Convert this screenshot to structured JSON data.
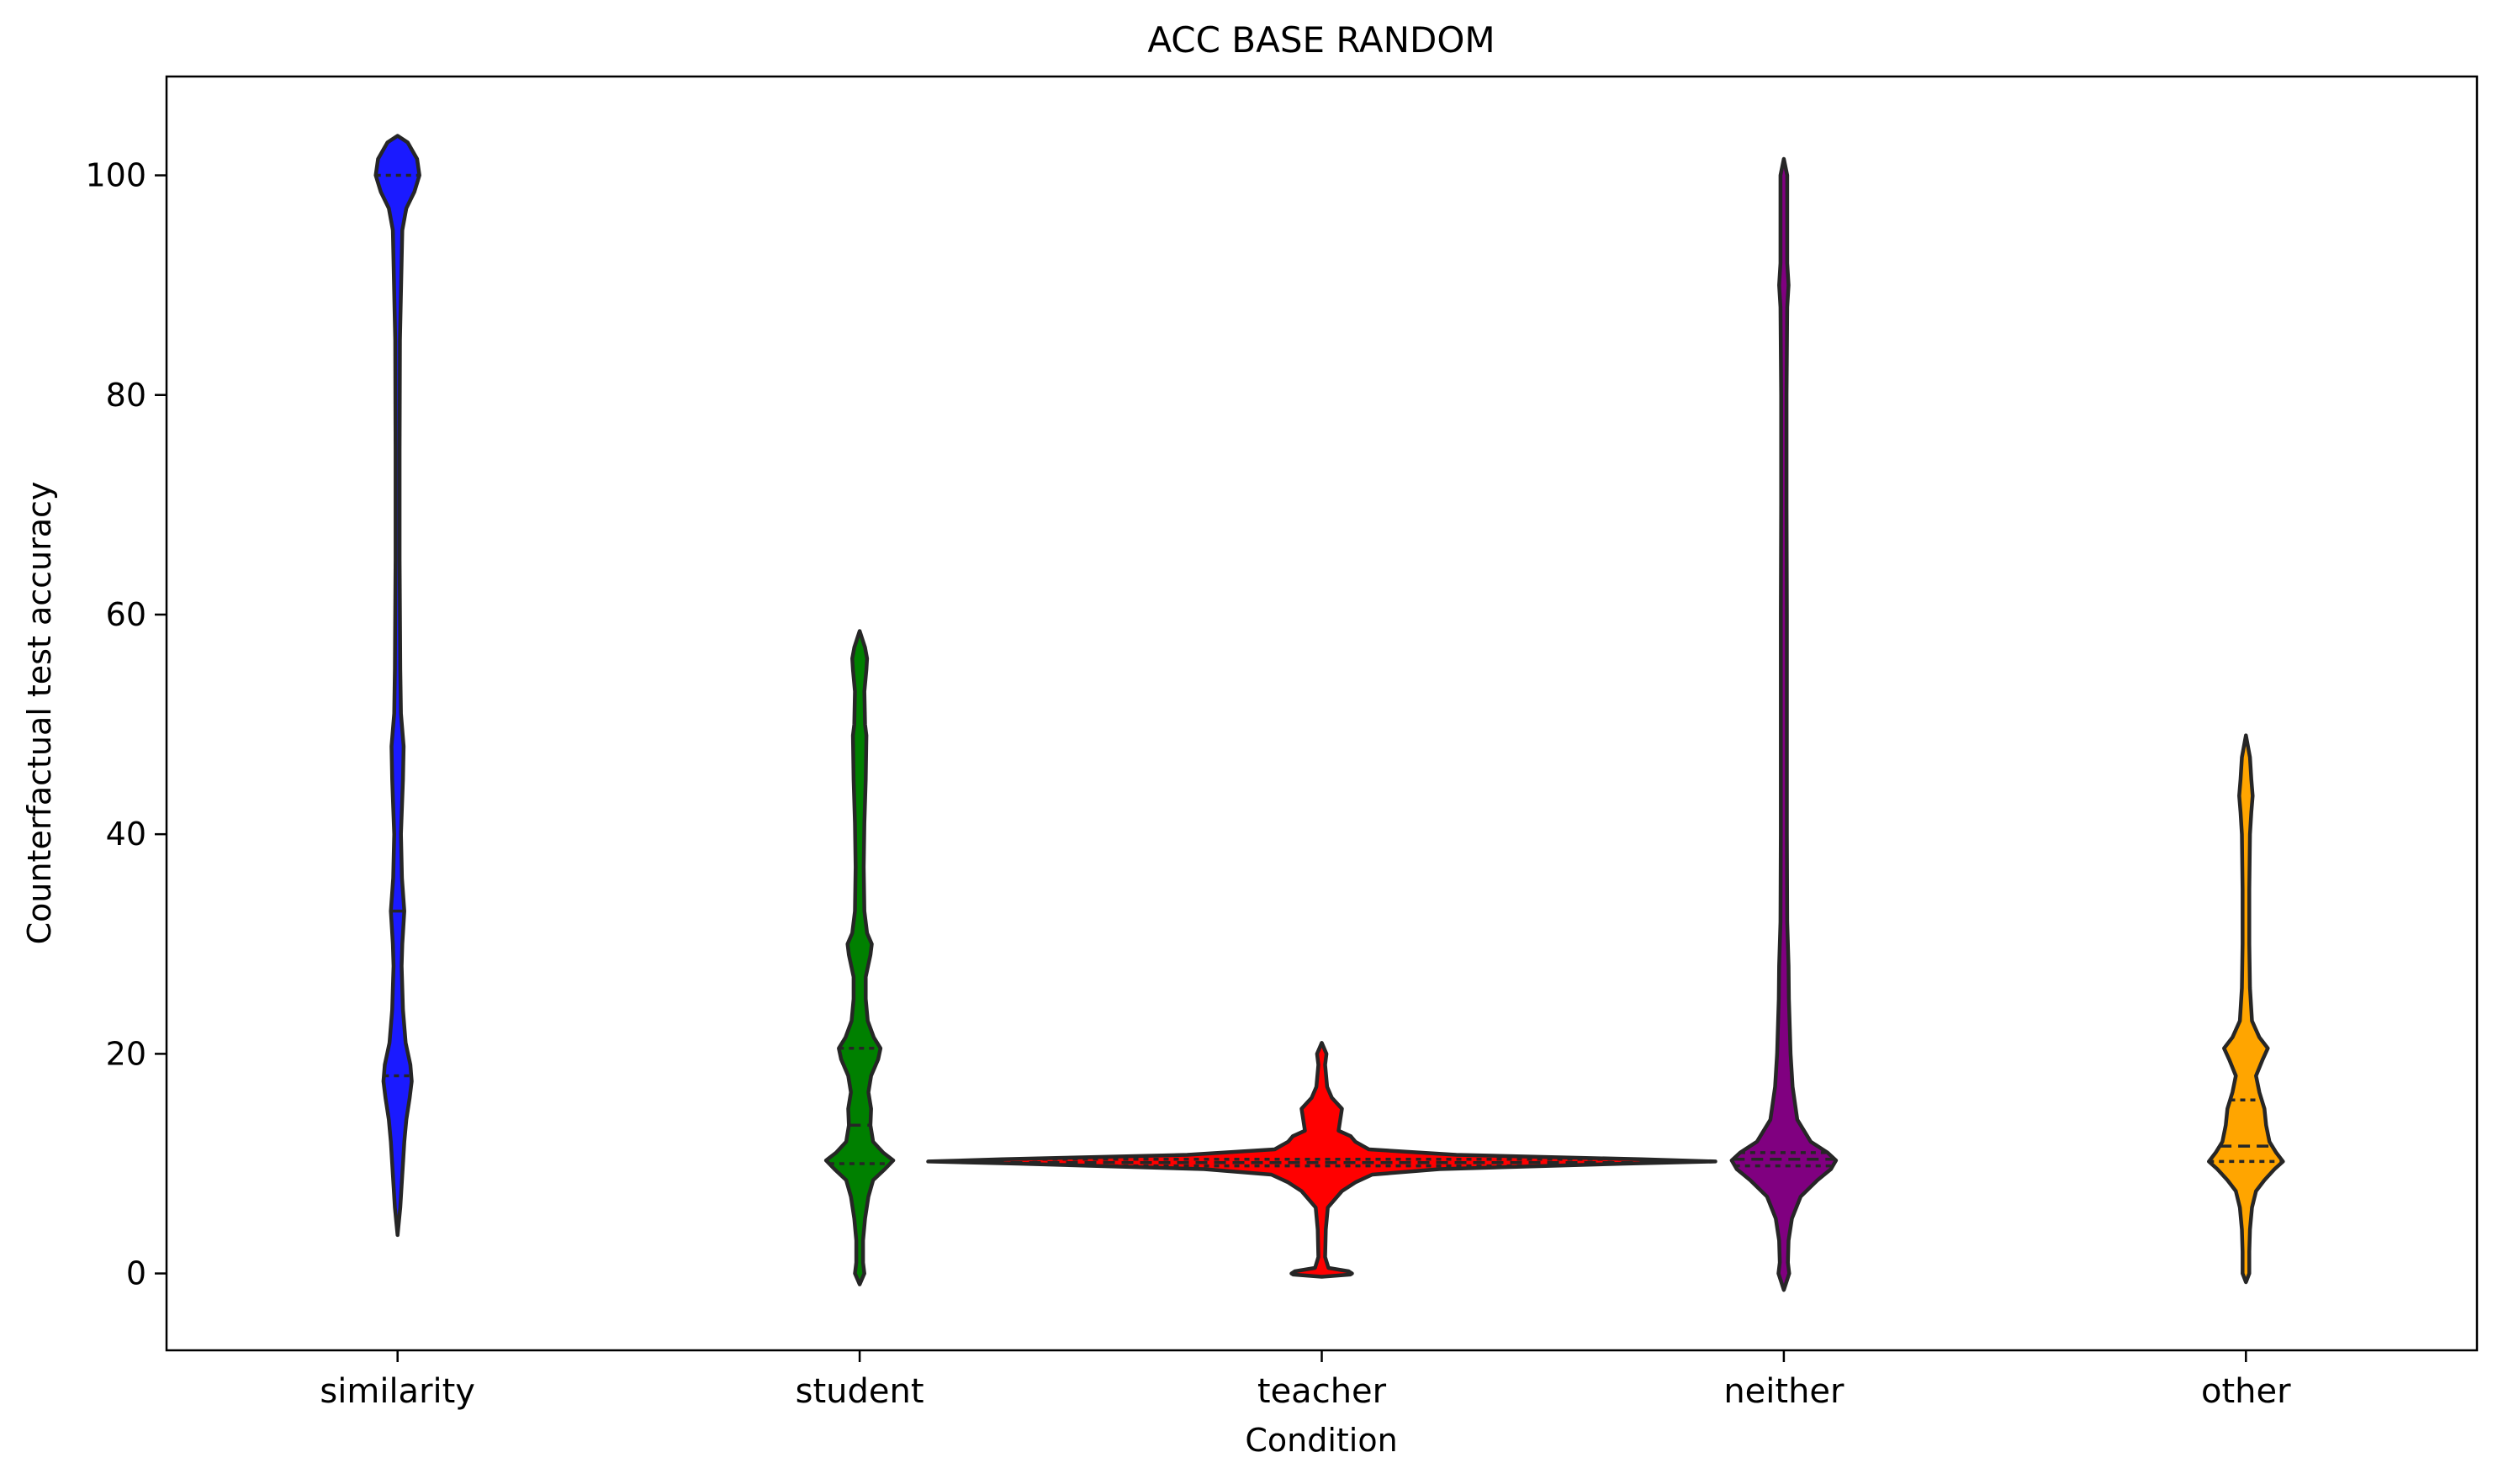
{
  "chart_data": {
    "type": "violin",
    "title": "ACC BASE RANDOM",
    "xlabel": "Condition",
    "ylabel": "Counterfactual test accuracy",
    "ylim": [
      -7,
      109
    ],
    "yticks": [
      0,
      20,
      40,
      60,
      80,
      100
    ],
    "categories": [
      "similarity",
      "student",
      "teacher",
      "neither",
      "other"
    ],
    "grid": false,
    "violins": [
      {
        "category": "similarity",
        "color": "#1a1aff",
        "quartiles": [
          18,
          33,
          100
        ],
        "profile": [
          [
            3.5,
            0
          ],
          [
            6,
            0.8
          ],
          [
            8,
            1.2
          ],
          [
            10,
            1.6
          ],
          [
            12,
            2
          ],
          [
            14,
            2.6
          ],
          [
            16,
            3.6
          ],
          [
            17.5,
            4.2
          ],
          [
            19,
            3.8
          ],
          [
            21,
            2.4
          ],
          [
            24,
            1.6
          ],
          [
            28,
            1.2
          ],
          [
            30,
            1.4
          ],
          [
            33,
            2
          ],
          [
            36,
            1.3
          ],
          [
            40,
            1
          ],
          [
            45,
            1.6
          ],
          [
            48,
            1.8
          ],
          [
            51,
            1
          ],
          [
            55,
            0.8
          ],
          [
            65,
            0.6
          ],
          [
            75,
            0.6
          ],
          [
            85,
            0.7
          ],
          [
            95,
            1.4
          ],
          [
            97,
            2.6
          ],
          [
            98.5,
            5
          ],
          [
            100,
            6.5
          ],
          [
            101.5,
            5.8
          ],
          [
            103,
            3
          ],
          [
            103.6,
            0
          ]
        ]
      },
      {
        "category": "student",
        "color": "#008000",
        "quartiles": [
          10,
          13.5,
          20.5
        ],
        "profile": [
          [
            -1,
            0
          ],
          [
            0,
            1.4
          ],
          [
            1,
            1
          ],
          [
            3,
            1
          ],
          [
            5,
            1.6
          ],
          [
            7,
            2.6
          ],
          [
            8.5,
            4
          ],
          [
            9.5,
            7.5
          ],
          [
            10.3,
            10
          ],
          [
            11,
            7
          ],
          [
            12,
            4
          ],
          [
            13.5,
            3.2
          ],
          [
            15,
            3.4
          ],
          [
            16.5,
            2.6
          ],
          [
            18,
            3.4
          ],
          [
            19.5,
            5.5
          ],
          [
            20.5,
            6.2
          ],
          [
            21.5,
            4.2
          ],
          [
            23,
            2.4
          ],
          [
            25,
            1.8
          ],
          [
            27,
            1.8
          ],
          [
            29,
            3.2
          ],
          [
            30,
            3.6
          ],
          [
            31,
            2.2
          ],
          [
            33,
            1.4
          ],
          [
            37,
            1.2
          ],
          [
            41,
            1.4
          ],
          [
            45,
            1.8
          ],
          [
            49,
            2
          ],
          [
            50,
            1.6
          ],
          [
            53,
            1.4
          ],
          [
            55,
            2
          ],
          [
            56,
            2.2
          ],
          [
            57,
            1.6
          ],
          [
            58.5,
            0
          ]
        ]
      },
      {
        "category": "teacher",
        "color": "#ff0000",
        "quartiles": [
          9.8,
          10.1,
          10.4
        ],
        "profile": [
          [
            -0.3,
            0
          ],
          [
            -0.1,
            8.5
          ],
          [
            0,
            9
          ],
          [
            0.2,
            8
          ],
          [
            0.5,
            2
          ],
          [
            1.5,
            1
          ],
          [
            4,
            1.2
          ],
          [
            6,
            1.8
          ],
          [
            7.5,
            6
          ],
          [
            8.3,
            10
          ],
          [
            9,
            15
          ],
          [
            9.5,
            35
          ],
          [
            10,
            90
          ],
          [
            10.2,
            117
          ],
          [
            10.4,
            95
          ],
          [
            10.8,
            40
          ],
          [
            11.3,
            14
          ],
          [
            12,
            10
          ],
          [
            12.5,
            8.6
          ],
          [
            13,
            5
          ],
          [
            14,
            5.5
          ],
          [
            15,
            6
          ],
          [
            16,
            3
          ],
          [
            17,
            1.6
          ],
          [
            19,
            1
          ],
          [
            20,
            1.4
          ],
          [
            21,
            0
          ]
        ]
      },
      {
        "category": "neither",
        "color": "#800080",
        "quartiles": [
          9.8,
          10.4,
          11
        ],
        "profile": [
          [
            -1.5,
            0
          ],
          [
            0,
            1.6
          ],
          [
            1,
            1.2
          ],
          [
            3,
            1.4
          ],
          [
            5,
            2.4
          ],
          [
            7,
            5
          ],
          [
            8.5,
            10
          ],
          [
            9.5,
            14
          ],
          [
            10.3,
            15.5
          ],
          [
            11,
            13
          ],
          [
            12,
            8
          ],
          [
            14,
            4
          ],
          [
            17,
            2.6
          ],
          [
            20,
            2
          ],
          [
            25,
            1.5
          ],
          [
            28,
            1.4
          ],
          [
            32,
            1
          ],
          [
            40,
            0.9
          ],
          [
            50,
            0.9
          ],
          [
            60,
            0.9
          ],
          [
            70,
            0.8
          ],
          [
            80,
            0.8
          ],
          [
            88,
            1
          ],
          [
            90,
            1.4
          ],
          [
            92,
            1
          ],
          [
            100,
            1
          ],
          [
            101.5,
            0
          ]
        ]
      },
      {
        "category": "other",
        "color": "#ffa500",
        "quartiles": [
          10.2,
          11.6,
          15.8
        ],
        "profile": [
          [
            -0.8,
            0
          ],
          [
            0,
            1
          ],
          [
            2,
            1
          ],
          [
            4,
            1.2
          ],
          [
            6,
            1.8
          ],
          [
            7.5,
            3
          ],
          [
            8.5,
            5.5
          ],
          [
            9.5,
            8.5
          ],
          [
            10.2,
            11
          ],
          [
            11,
            9
          ],
          [
            12,
            7
          ],
          [
            13.5,
            6
          ],
          [
            15,
            5.5
          ],
          [
            16.5,
            4
          ],
          [
            18,
            3
          ],
          [
            19.5,
            5
          ],
          [
            20.5,
            6.5
          ],
          [
            21.5,
            4
          ],
          [
            23,
            1.8
          ],
          [
            26,
            1.2
          ],
          [
            30,
            1
          ],
          [
            35,
            1
          ],
          [
            40,
            1.2
          ],
          [
            42,
            1.6
          ],
          [
            43.5,
            2
          ],
          [
            45,
            1.6
          ],
          [
            47,
            1.2
          ],
          [
            49,
            0
          ]
        ]
      }
    ]
  }
}
